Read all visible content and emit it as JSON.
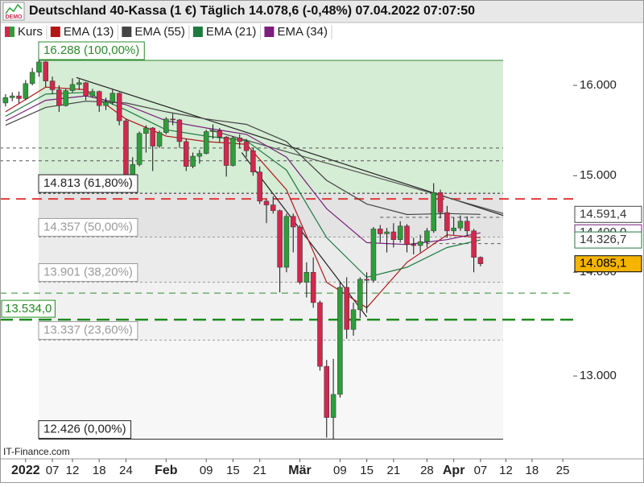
{
  "chart_data": {
    "type": "candlestick",
    "title": "Deutschland 40-Kassa (1 €) Täglich 14.078,6 (-0,48%) 07.04.2022 07:07:50",
    "badge": "DEMO",
    "price_name": "Kurs",
    "source": "IT-Finance.com",
    "up_color": "#2e9e3a",
    "down_color": "#d2284e",
    "log_scale": true,
    "xlim": [
      -0.83,
      84.85
    ],
    "ylim": [
      12253,
      16524
    ],
    "yticks": [
      {
        "value": 13000,
        "label": "13.000"
      },
      {
        "value": 14000,
        "label": "14.000"
      },
      {
        "value": 15000,
        "label": "15.000"
      },
      {
        "value": 16000,
        "label": "16.000"
      }
    ],
    "xticks": [
      {
        "value": 3,
        "label": "2022"
      },
      {
        "value": 7,
        "label": "07"
      },
      {
        "value": 10,
        "label": "12"
      },
      {
        "value": 14,
        "label": "18"
      },
      {
        "value": 18,
        "label": "24"
      },
      {
        "value": 24,
        "label": "Feb"
      },
      {
        "value": 30,
        "label": "09"
      },
      {
        "value": 34,
        "label": "15"
      },
      {
        "value": 38,
        "label": "21"
      },
      {
        "value": 44,
        "label": "Mär"
      },
      {
        "value": 50,
        "label": "09"
      },
      {
        "value": 54,
        "label": "15"
      },
      {
        "value": 58,
        "label": "21"
      },
      {
        "value": 63,
        "label": "28"
      },
      {
        "value": 67,
        "label": "Apr"
      },
      {
        "value": 71,
        "label": "07"
      },
      {
        "value": 74.8,
        "label": "12"
      },
      {
        "value": 78.7,
        "label": "18"
      },
      {
        "value": 83.3,
        "label": "25"
      }
    ],
    "candles": [
      {
        "open": 15800,
        "high": 15900,
        "low": 15760,
        "close": 15860
      },
      {
        "open": 15860,
        "high": 15920,
        "low": 15820,
        "close": 15880
      },
      {
        "open": 15880,
        "high": 15930,
        "low": 15800,
        "close": 15850
      },
      {
        "open": 15850,
        "high": 16060,
        "low": 15830,
        "close": 16020
      },
      {
        "open": 16020,
        "high": 16200,
        "low": 16000,
        "close": 16150
      },
      {
        "open": 16150,
        "high": 16288,
        "low": 16100,
        "close": 16270
      },
      {
        "open": 16270,
        "high": 16280,
        "low": 15980,
        "close": 16050
      },
      {
        "open": 16050,
        "high": 16100,
        "low": 15900,
        "close": 15950
      },
      {
        "open": 15950,
        "high": 16000,
        "low": 15700,
        "close": 15770
      },
      {
        "open": 15770,
        "high": 15960,
        "low": 15760,
        "close": 15940
      },
      {
        "open": 15940,
        "high": 16080,
        "low": 15920,
        "close": 16010
      },
      {
        "open": 16010,
        "high": 16070,
        "low": 15950,
        "close": 16030
      },
      {
        "open": 16030,
        "high": 16040,
        "low": 15830,
        "close": 15880
      },
      {
        "open": 15880,
        "high": 15960,
        "low": 15860,
        "close": 15930
      },
      {
        "open": 15930,
        "high": 15940,
        "low": 15700,
        "close": 15770
      },
      {
        "open": 15770,
        "high": 15860,
        "low": 15720,
        "close": 15810
      },
      {
        "open": 15810,
        "high": 15950,
        "low": 15780,
        "close": 15910
      },
      {
        "open": 15910,
        "high": 15920,
        "low": 15550,
        "close": 15600
      },
      {
        "open": 15600,
        "high": 15620,
        "low": 14980,
        "close": 15010
      },
      {
        "open": 15010,
        "high": 15200,
        "low": 14990,
        "close": 15120
      },
      {
        "open": 15120,
        "high": 15480,
        "low": 15100,
        "close": 15460
      },
      {
        "open": 15460,
        "high": 15550,
        "low": 15250,
        "close": 15520
      },
      {
        "open": 15520,
        "high": 15530,
        "low": 15050,
        "close": 15320
      },
      {
        "open": 15320,
        "high": 15490,
        "low": 15300,
        "close": 15470
      },
      {
        "open": 15470,
        "high": 15640,
        "low": 15450,
        "close": 15620
      },
      {
        "open": 15620,
        "high": 15680,
        "low": 15550,
        "close": 15610
      },
      {
        "open": 15610,
        "high": 15620,
        "low": 15300,
        "close": 15370
      },
      {
        "open": 15370,
        "high": 15400,
        "low": 15050,
        "close": 15100
      },
      {
        "open": 15100,
        "high": 15250,
        "low": 15080,
        "close": 15210
      },
      {
        "open": 15210,
        "high": 15280,
        "low": 15130,
        "close": 15240
      },
      {
        "open": 15240,
        "high": 15500,
        "low": 15230,
        "close": 15480
      },
      {
        "open": 15480,
        "high": 15560,
        "low": 15400,
        "close": 15490
      },
      {
        "open": 15490,
        "high": 15520,
        "low": 15360,
        "close": 15420
      },
      {
        "open": 15420,
        "high": 15430,
        "low": 14990,
        "close": 15110
      },
      {
        "open": 15110,
        "high": 15430,
        "low": 15100,
        "close": 15410
      },
      {
        "open": 15410,
        "high": 15450,
        "low": 15300,
        "close": 15370
      },
      {
        "open": 15370,
        "high": 15400,
        "low": 15200,
        "close": 15270
      },
      {
        "open": 15270,
        "high": 15300,
        "low": 15000,
        "close": 15040
      },
      {
        "open": 15040,
        "high": 15100,
        "low": 14700,
        "close": 14730
      },
      {
        "open": 14730,
        "high": 14750,
        "low": 14500,
        "close": 14690
      },
      {
        "open": 14690,
        "high": 14780,
        "low": 14600,
        "close": 14630
      },
      {
        "open": 14630,
        "high": 14640,
        "low": 13800,
        "close": 14050
      },
      {
        "open": 14050,
        "high": 14600,
        "low": 14000,
        "close": 14570
      },
      {
        "open": 14570,
        "high": 14600,
        "low": 14200,
        "close": 14460
      },
      {
        "open": 14460,
        "high": 14480,
        "low": 13880,
        "close": 13900
      },
      {
        "open": 13900,
        "high": 14100,
        "low": 13750,
        "close": 14000
      },
      {
        "open": 14000,
        "high": 14150,
        "low": 13650,
        "close": 13700
      },
      {
        "open": 13700,
        "high": 13720,
        "low": 13050,
        "close": 13090
      },
      {
        "open": 13090,
        "high": 13150,
        "low": 12440,
        "close": 12620
      },
      {
        "open": 12620,
        "high": 13160,
        "low": 12426,
        "close": 12830
      },
      {
        "open": 12830,
        "high": 13900,
        "low": 12800,
        "close": 13850
      },
      {
        "open": 13850,
        "high": 13950,
        "low": 13350,
        "close": 13440
      },
      {
        "open": 13440,
        "high": 13700,
        "low": 13380,
        "close": 13630
      },
      {
        "open": 13630,
        "high": 13950,
        "low": 13550,
        "close": 13930
      },
      {
        "open": 13930,
        "high": 14000,
        "low": 13600,
        "close": 13920
      },
      {
        "open": 13920,
        "high": 14460,
        "low": 13900,
        "close": 14440
      },
      {
        "open": 14440,
        "high": 14480,
        "low": 14300,
        "close": 14390
      },
      {
        "open": 14390,
        "high": 14450,
        "low": 14200,
        "close": 14410
      },
      {
        "open": 14410,
        "high": 14500,
        "low": 14250,
        "close": 14330
      },
      {
        "open": 14330,
        "high": 14520,
        "low": 14300,
        "close": 14470
      },
      {
        "open": 14470,
        "high": 14490,
        "low": 14200,
        "close": 14280
      },
      {
        "open": 14280,
        "high": 14350,
        "low": 14180,
        "close": 14270
      },
      {
        "open": 14270,
        "high": 14380,
        "low": 14200,
        "close": 14310
      },
      {
        "open": 14310,
        "high": 14450,
        "low": 14250,
        "close": 14420
      },
      {
        "open": 14420,
        "high": 14920,
        "low": 14400,
        "close": 14820
      },
      {
        "open": 14820,
        "high": 14850,
        "low": 14550,
        "close": 14610
      },
      {
        "open": 14610,
        "high": 14680,
        "low": 14350,
        "close": 14420
      },
      {
        "open": 14420,
        "high": 14560,
        "low": 14380,
        "close": 14450
      },
      {
        "open": 14450,
        "high": 14580,
        "low": 14420,
        "close": 14520
      },
      {
        "open": 14520,
        "high": 14570,
        "low": 14370,
        "close": 14420
      },
      {
        "open": 14420,
        "high": 14440,
        "low": 14000,
        "close": 14150
      },
      {
        "open": 14150,
        "high": 14160,
        "low": 14060,
        "close": 14085.1
      }
    ],
    "ema_x": [
      0,
      6,
      12,
      18,
      24,
      30,
      36,
      42,
      48,
      54,
      60,
      66,
      71
    ],
    "emas": [
      {
        "name": "EMA (13)",
        "color": "#b01818",
        "values": [
          15700,
          15980,
          15950,
          15620,
          15430,
          15370,
          15340,
          14850,
          13900,
          13650,
          14100,
          14380,
          14350
        ]
      },
      {
        "name": "EMA (55)",
        "color": "#444444",
        "values": [
          15550,
          15750,
          15820,
          15800,
          15700,
          15620,
          15560,
          15370,
          14950,
          14700,
          14590,
          14600,
          14591.4
        ]
      },
      {
        "name": "EMA (21)",
        "color": "#1f7a3f",
        "values": [
          15650,
          15900,
          15920,
          15720,
          15500,
          15430,
          15380,
          15060,
          14350,
          13950,
          14050,
          14250,
          14326.7
        ]
      },
      {
        "name": "EMA (34)",
        "color": "#7a1f7a",
        "values": [
          15600,
          15830,
          15880,
          15780,
          15600,
          15520,
          15450,
          15200,
          14650,
          14300,
          14280,
          14330,
          14400
        ]
      }
    ],
    "fib": [
      {
        "value": 16288,
        "label": "16.288 (100,00%)",
        "color": "#2a8a2a",
        "fill": "#d5ecd5",
        "dash": false
      },
      {
        "value": 14813,
        "label": "14.813 (61,80%)",
        "color": "#222222",
        "fill": "#e3e3e3",
        "dash": true
      },
      {
        "value": 14357,
        "label": "14.357 (50,00%)",
        "color": "#9a9a9a",
        "fill": "#ebebeb",
        "dash": true
      },
      {
        "value": 13901,
        "label": "13.901 (38,20%)",
        "color": "#9a9a9a",
        "fill": "#f1f1f1",
        "dash": true
      },
      {
        "value": 13337,
        "label": "13.337 (23,60%)",
        "color": "#9a9a9a",
        "fill": "#f7f7f7",
        "dash": true
      },
      {
        "value": 12426,
        "label": "12.426 (0,00%)",
        "color": "#222222",
        "fill": null,
        "dash": false
      }
    ],
    "levels": [
      {
        "value": 14753,
        "color": "#e03c3c",
        "width": 2,
        "dash": "12,8"
      },
      {
        "value": 13793,
        "color": "#2e8b2e",
        "width": 1,
        "dash": "8,6"
      },
      {
        "value": 13534,
        "color": "#1f8a1f",
        "width": 2.5,
        "dash": "16,8",
        "label": "13.534,0"
      },
      {
        "value": 15300,
        "color": "#555555",
        "width": 1,
        "dash": "4,4",
        "start": -0.83
      },
      {
        "value": 15160,
        "color": "#555555",
        "width": 1,
        "dash": "4,4",
        "start": -0.83
      },
      {
        "value": 14560,
        "color": "#555555",
        "width": 1,
        "dash": "4,4",
        "start": 56
      },
      {
        "value": 14290,
        "color": "#555555",
        "width": 1,
        "dash": "4,4",
        "start": 61
      }
    ],
    "trendlines": [
      {
        "from": [
          10.6,
          16090
        ],
        "to": [
          74.4,
          14580
        ],
        "color": "#222222"
      },
      {
        "from": [
          30.5,
          15500
        ],
        "to": [
          74.4,
          14600
        ],
        "color": "#555555"
      },
      {
        "from": [
          35.3,
          15250
        ],
        "to": [
          54.0,
          13560
        ],
        "color": "#222222"
      }
    ],
    "price_labels": [
      {
        "value": 14400,
        "label": "14.400,0",
        "color": "#7a1f7a",
        "bg": "#ffffff"
      },
      {
        "value": 14591.4,
        "label": "14.591,4",
        "color": "#444444",
        "bg": "#ffffff"
      },
      {
        "value": 14326.7,
        "label": "14.326,7",
        "color": "#1f7a3f",
        "bg": "#ffffff"
      },
      {
        "value": 14085.1,
        "label": "14.085,1",
        "color": "#000000",
        "bg": "#f5b400"
      }
    ]
  }
}
